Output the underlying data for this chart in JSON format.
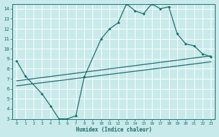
{
  "title": "",
  "xlabel": "Humidex (Indice chaleur)",
  "ylabel": "",
  "xlim": [
    -0.5,
    23.5
  ],
  "ylim": [
    3,
    14.5
  ],
  "xticks": [
    0,
    1,
    2,
    3,
    4,
    5,
    6,
    7,
    8,
    9,
    10,
    11,
    12,
    13,
    14,
    15,
    16,
    17,
    18,
    19,
    20,
    21,
    22,
    23
  ],
  "yticks": [
    3,
    4,
    5,
    6,
    7,
    8,
    9,
    10,
    11,
    12,
    13,
    14
  ],
  "bg_color": "#c8eaea",
  "line_color": "#1a6b6b",
  "grid_color": "#ffffff",
  "curve1_x": [
    0,
    1,
    3,
    4,
    5,
    6,
    7,
    8,
    10,
    11,
    12,
    13,
    14,
    15,
    16,
    17,
    18,
    19,
    20,
    21,
    22,
    23
  ],
  "curve1_y": [
    8.8,
    7.3,
    5.5,
    4.3,
    3.0,
    3.0,
    3.3,
    7.2,
    11.0,
    12.0,
    12.6,
    14.5,
    13.8,
    13.5,
    14.5,
    14.0,
    14.2,
    11.5,
    10.5,
    10.3,
    9.5,
    9.2
  ],
  "line2_x": [
    0,
    23
  ],
  "line2_y": [
    6.8,
    9.3
  ],
  "line3_x": [
    0,
    23
  ],
  "line3_y": [
    6.3,
    8.7
  ]
}
